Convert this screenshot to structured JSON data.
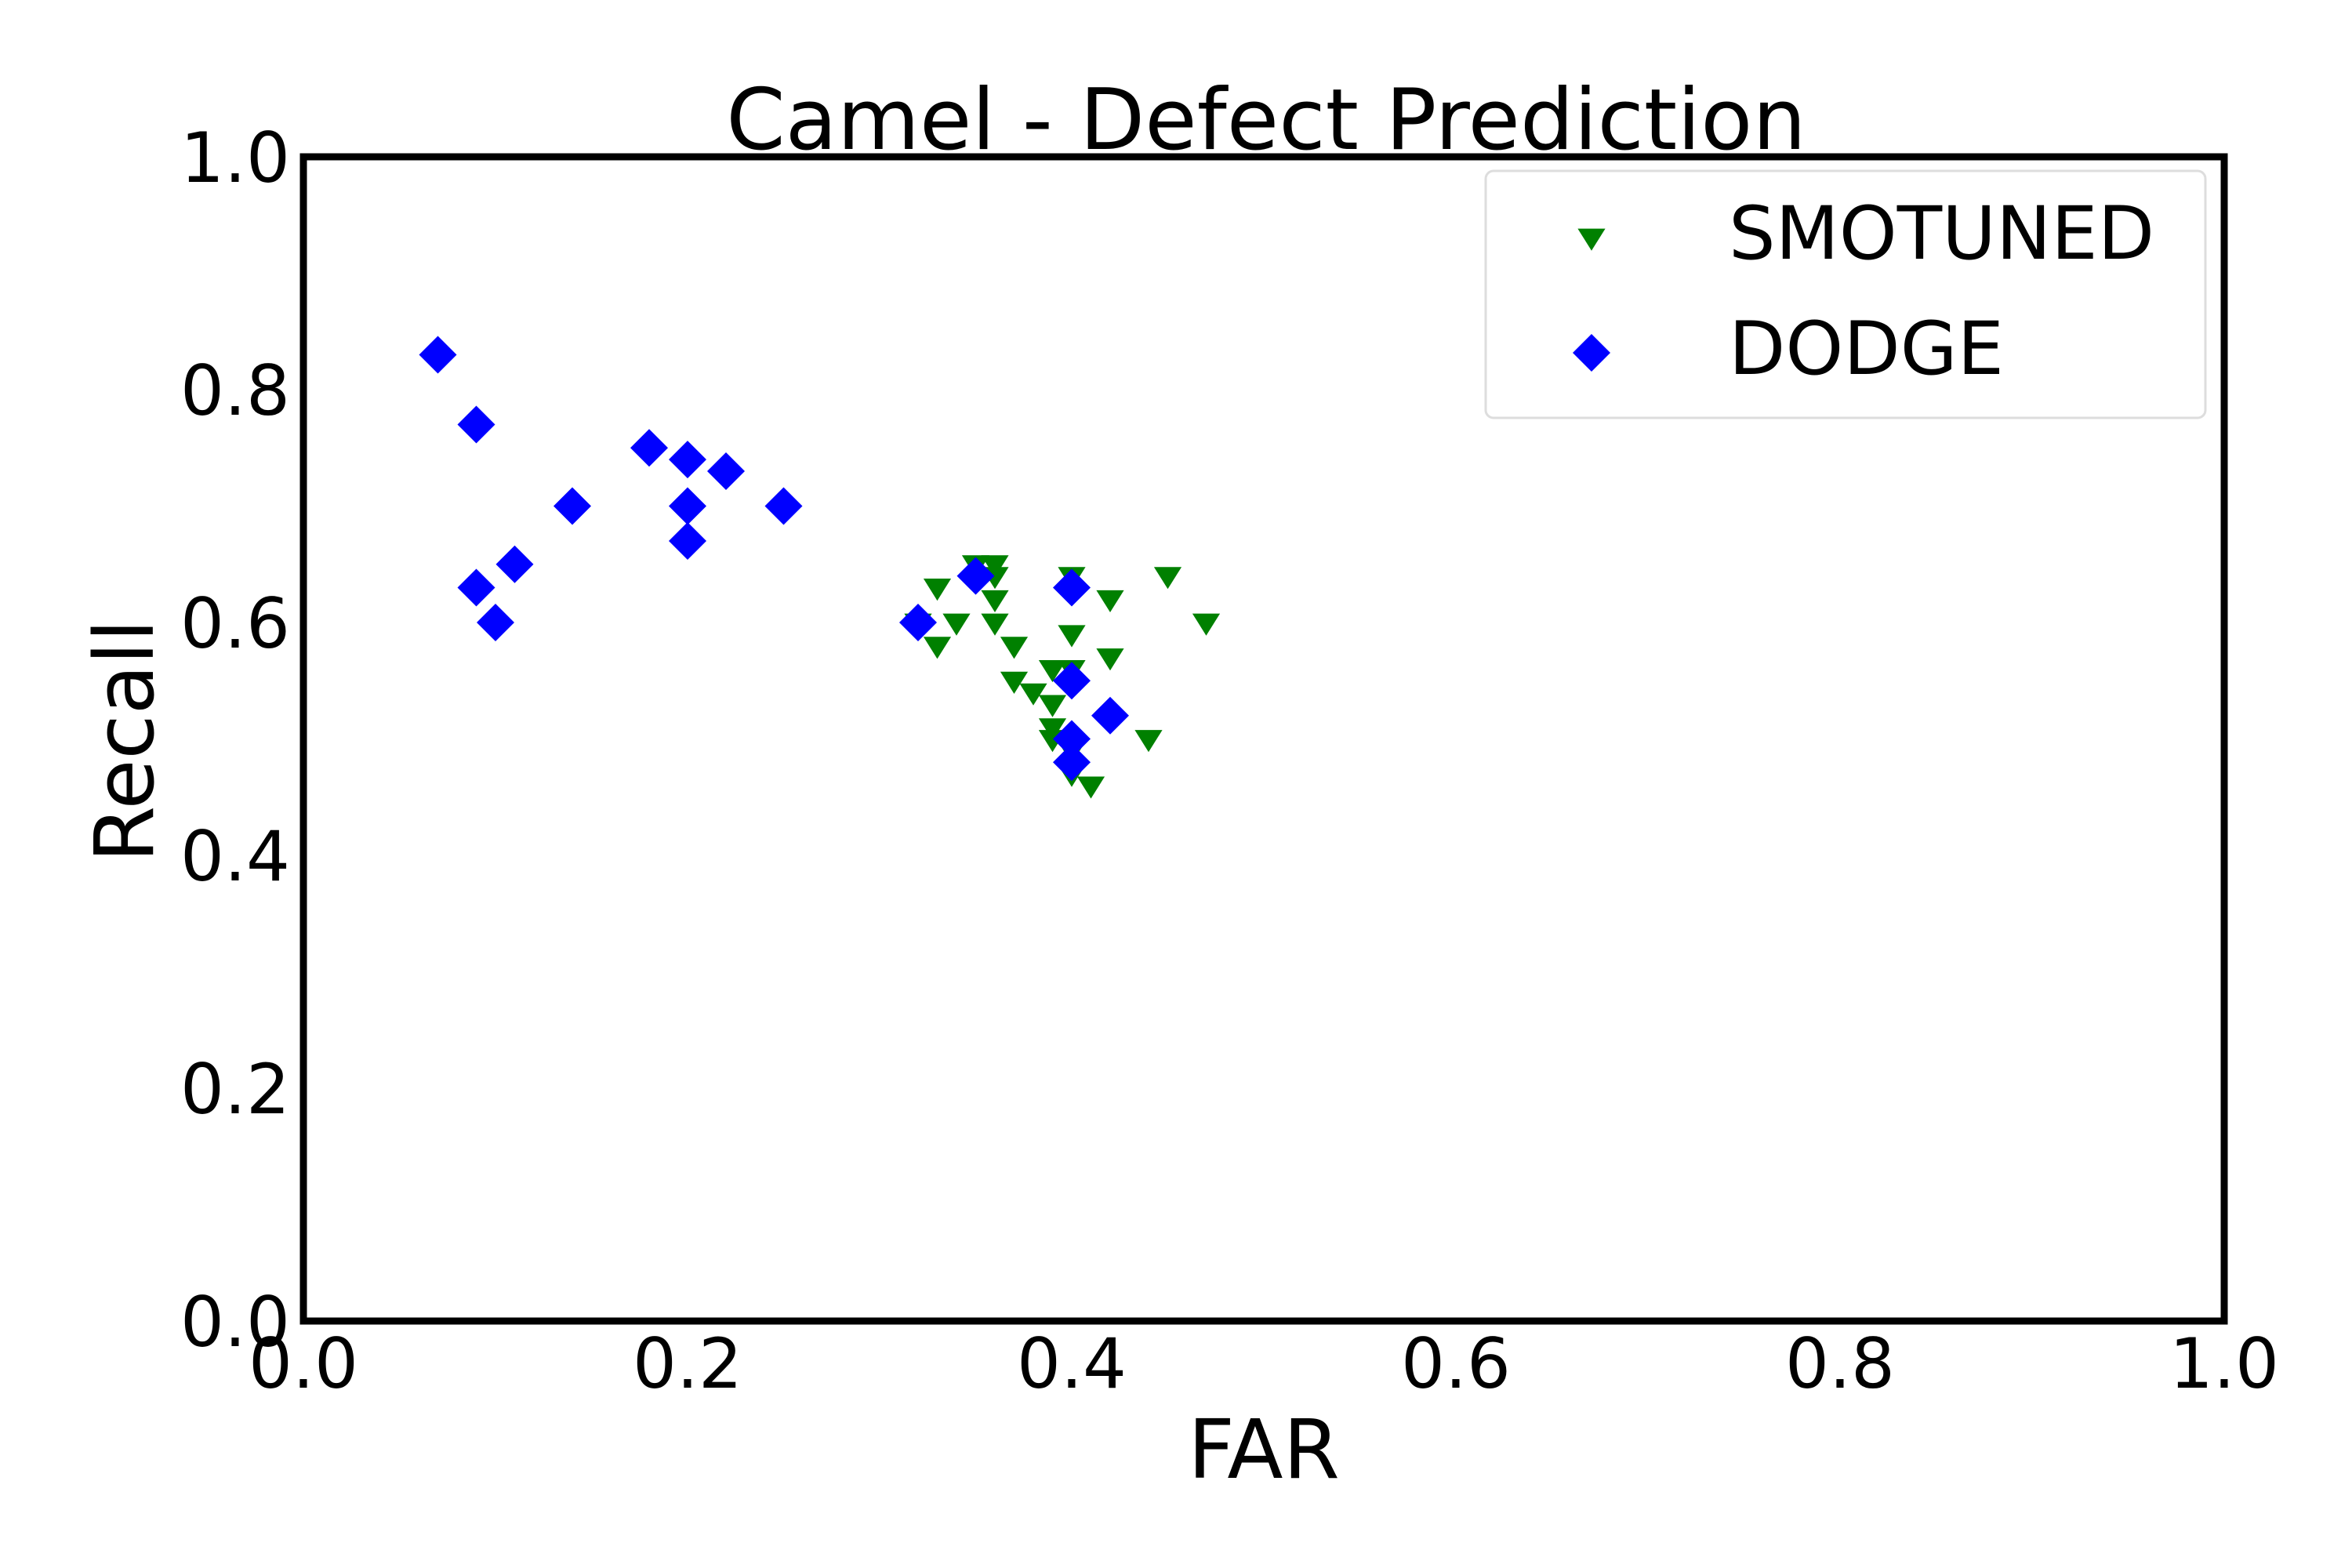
{
  "chart_data": {
    "type": "scatter",
    "title": "Camel - Defect Prediction",
    "xlabel": "FAR",
    "ylabel": "Recall",
    "xlim": [
      0.0,
      1.0
    ],
    "ylim": [
      0.0,
      1.0
    ],
    "xticks": [
      "0.0",
      "0.2",
      "0.4",
      "0.6",
      "0.8",
      "1.0"
    ],
    "yticks": [
      "0.0",
      "0.2",
      "0.4",
      "0.6",
      "0.8",
      "1.0"
    ],
    "grid": false,
    "legend_position": "top-right",
    "series": [
      {
        "name": "SMOTUNED",
        "marker": "triangle-down",
        "color": "#008000",
        "points": [
          [
            0.35,
            0.65
          ],
          [
            0.36,
            0.65
          ],
          [
            0.36,
            0.64
          ],
          [
            0.36,
            0.62
          ],
          [
            0.33,
            0.63
          ],
          [
            0.34,
            0.6
          ],
          [
            0.33,
            0.58
          ],
          [
            0.36,
            0.6
          ],
          [
            0.37,
            0.58
          ],
          [
            0.37,
            0.55
          ],
          [
            0.38,
            0.54
          ],
          [
            0.39,
            0.56
          ],
          [
            0.39,
            0.53
          ],
          [
            0.39,
            0.51
          ],
          [
            0.39,
            0.5
          ],
          [
            0.4,
            0.64
          ],
          [
            0.4,
            0.59
          ],
          [
            0.4,
            0.56
          ],
          [
            0.4,
            0.49
          ],
          [
            0.4,
            0.47
          ],
          [
            0.41,
            0.46
          ],
          [
            0.42,
            0.62
          ],
          [
            0.42,
            0.57
          ],
          [
            0.44,
            0.5
          ],
          [
            0.45,
            0.64
          ],
          [
            0.47,
            0.6
          ],
          [
            0.32,
            0.6
          ]
        ]
      },
      {
        "name": "DODGE",
        "marker": "diamond",
        "color": "#0000ff",
        "points": [
          [
            0.07,
            0.83
          ],
          [
            0.09,
            0.77
          ],
          [
            0.09,
            0.63
          ],
          [
            0.1,
            0.6
          ],
          [
            0.11,
            0.65
          ],
          [
            0.14,
            0.7
          ],
          [
            0.18,
            0.75
          ],
          [
            0.2,
            0.74
          ],
          [
            0.2,
            0.7
          ],
          [
            0.2,
            0.67
          ],
          [
            0.22,
            0.73
          ],
          [
            0.25,
            0.7
          ],
          [
            0.32,
            0.6
          ],
          [
            0.35,
            0.64
          ],
          [
            0.4,
            0.63
          ],
          [
            0.4,
            0.55
          ],
          [
            0.4,
            0.5
          ],
          [
            0.4,
            0.48
          ],
          [
            0.42,
            0.52
          ]
        ]
      }
    ]
  }
}
